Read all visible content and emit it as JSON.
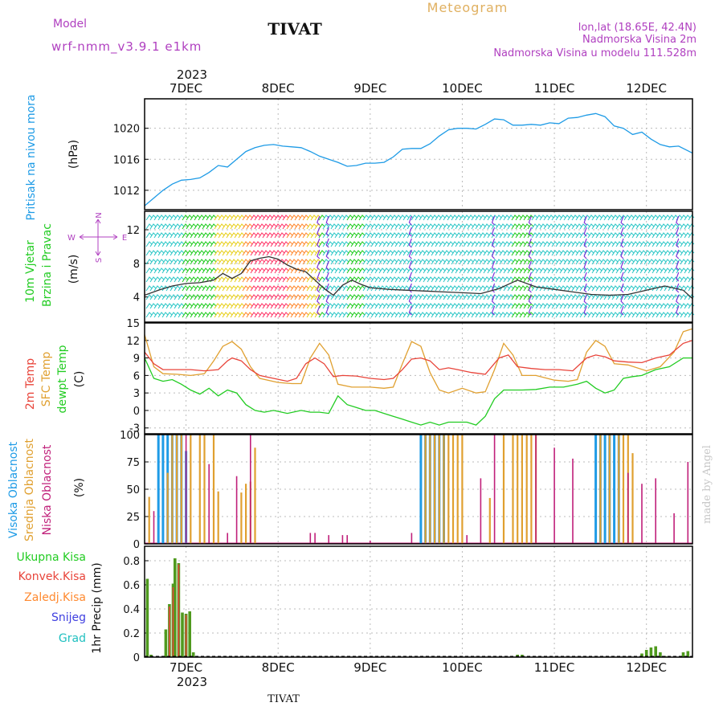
{
  "header": {
    "model_label": "Model",
    "model_name": "wrf-nmm_v3.9.1  e1km",
    "station": "TIVAT",
    "product": "Meteogram",
    "lonlat": "lon,lat (18.65E, 42.4N)",
    "elevation": "Nadmorska Visina 2m",
    "model_elevation": "Nadmorska Visina u modelu 111.528m",
    "footer_station": "TIVAT",
    "credit": "made by Angel"
  },
  "colors": {
    "pressure": "#1e9be6",
    "temp2m": "#e8443a",
    "sfc_temp": "#e0a030",
    "dewpoint": "#22cc22",
    "high_cloud": "#1e9be6",
    "mid_cloud": "#e0a030",
    "low_cloud": "#c0207a",
    "precip_total": "#4f9a1e",
    "convective": "#e8443a",
    "freezing": "#ff8a30",
    "snow": "#4040e0",
    "hail": "#20c0c0",
    "model_label": "#b040c0",
    "product_title": "#e0b060"
  },
  "axes": {
    "year": "2023",
    "day_labels": [
      "7DEC",
      "8DEC",
      "9DEC",
      "10DEC",
      "11DEC",
      "12DEC"
    ],
    "wind_compass": {
      "n": "N",
      "s": "S",
      "w": "W",
      "e": "E"
    }
  },
  "chart_data": [
    {
      "type": "line",
      "panel": "pressure",
      "ylabel_line1": "Pritisak na nivou mora",
      "ylabel_line2": "(hPa)",
      "ylim": [
        1009.5,
        1023.8
      ],
      "yticks": [
        "1012",
        "1016",
        "1020"
      ],
      "grid": true,
      "x_start_days": 6.55,
      "x_end_days": 12.5,
      "series": [
        {
          "name": "Pritisak na nivou mora",
          "x": [
            6.55,
            6.65,
            6.75,
            6.85,
            6.95,
            7.05,
            7.15,
            7.25,
            7.35,
            7.45,
            7.55,
            7.65,
            7.75,
            7.85,
            7.95,
            8.05,
            8.15,
            8.25,
            8.35,
            8.45,
            8.55,
            8.65,
            8.75,
            8.85,
            8.95,
            9.05,
            9.15,
            9.25,
            9.35,
            9.45,
            9.55,
            9.65,
            9.75,
            9.85,
            9.95,
            10.05,
            10.15,
            10.25,
            10.35,
            10.45,
            10.55,
            10.65,
            10.75,
            10.85,
            10.95,
            11.05,
            11.15,
            11.25,
            11.35,
            11.45,
            11.55,
            11.65,
            11.75,
            11.85,
            11.95,
            12.05,
            12.15,
            12.25,
            12.35,
            12.5
          ],
          "values": [
            1010.0,
            1011.0,
            1012.0,
            1012.8,
            1013.3,
            1013.4,
            1013.6,
            1014.3,
            1015.2,
            1015.0,
            1016.0,
            1017.0,
            1017.5,
            1017.8,
            1017.9,
            1017.7,
            1017.6,
            1017.5,
            1017.0,
            1016.4,
            1016.0,
            1015.6,
            1015.1,
            1015.2,
            1015.5,
            1015.5,
            1015.6,
            1016.3,
            1017.3,
            1017.4,
            1017.4,
            1018.0,
            1019.0,
            1019.8,
            1020.0,
            1020.0,
            1019.9,
            1020.5,
            1021.2,
            1021.1,
            1020.4,
            1020.4,
            1020.5,
            1020.4,
            1020.7,
            1020.6,
            1021.3,
            1021.4,
            1021.7,
            1021.9,
            1021.5,
            1020.3,
            1020.0,
            1019.2,
            1019.5,
            1018.6,
            1017.9,
            1017.6,
            1017.7,
            1016.8
          ]
        }
      ]
    },
    {
      "type": "line",
      "panel": "wind",
      "ylabel_line1": "10m Vjetar",
      "ylabel_line2": "Brzina i Pravac",
      "ylabel_unit": "(m/s)",
      "ylim": [
        1.0,
        14.2
      ],
      "yticks": [
        "4",
        "8",
        "12"
      ],
      "grid": true,
      "series": [
        {
          "name": "10m Vjetar",
          "x": [
            6.55,
            6.7,
            6.85,
            7.0,
            7.15,
            7.3,
            7.4,
            7.5,
            7.6,
            7.7,
            7.8,
            7.9,
            8.0,
            8.1,
            8.2,
            8.3,
            8.4,
            8.5,
            8.6,
            8.7,
            8.8,
            8.9,
            9.0,
            9.2,
            9.4,
            9.6,
            9.8,
            10.0,
            10.2,
            10.4,
            10.6,
            10.8,
            11.0,
            11.2,
            11.4,
            11.6,
            11.8,
            12.0,
            12.2,
            12.4,
            12.5
          ],
          "values": [
            4.2,
            4.8,
            5.3,
            5.6,
            5.7,
            6.0,
            6.8,
            6.2,
            6.8,
            8.3,
            8.6,
            8.8,
            8.5,
            7.8,
            7.3,
            7.0,
            6.0,
            5.0,
            4.2,
            5.4,
            6.0,
            5.5,
            5.1,
            4.9,
            4.8,
            4.7,
            4.6,
            4.5,
            4.4,
            5.0,
            6.0,
            5.2,
            4.9,
            4.6,
            4.3,
            4.2,
            4.3,
            4.8,
            5.3,
            4.8,
            3.8
          ]
        }
      ]
    },
    {
      "type": "line",
      "panel": "temperature",
      "ylabel_line1": "2m Temp",
      "ylabel_line2": "SFC Temp",
      "ylabel_line3": "dewpt Temp",
      "ylabel_unit": "(C)",
      "ylim": [
        -4,
        15
      ],
      "yticks": [
        "-3",
        "0",
        "3",
        "6",
        "9",
        "12",
        "15"
      ],
      "grid": true,
      "series": [
        {
          "name": "2m Temp",
          "x": [
            6.55,
            6.65,
            6.75,
            6.85,
            6.95,
            7.05,
            7.2,
            7.35,
            7.45,
            7.5,
            7.6,
            7.7,
            7.8,
            7.95,
            8.1,
            8.2,
            8.3,
            8.4,
            8.5,
            8.6,
            8.7,
            8.85,
            9.0,
            9.15,
            9.25,
            9.35,
            9.45,
            9.55,
            9.65,
            9.75,
            9.85,
            9.95,
            10.1,
            10.25,
            10.4,
            10.5,
            10.6,
            10.75,
            10.9,
            11.05,
            11.2,
            11.35,
            11.45,
            11.55,
            11.65,
            11.8,
            11.95,
            12.1,
            12.25,
            12.4,
            12.5
          ],
          "values": [
            10.0,
            8.0,
            7.0,
            7.0,
            7.0,
            7.0,
            6.8,
            7.0,
            8.5,
            9.0,
            8.5,
            7.0,
            6.0,
            5.5,
            5.0,
            5.5,
            8.0,
            9.0,
            8.0,
            5.8,
            6.0,
            5.9,
            5.5,
            5.3,
            5.5,
            7.0,
            8.8,
            9.0,
            8.5,
            7.0,
            7.3,
            7.0,
            6.5,
            6.2,
            9.0,
            9.5,
            7.5,
            7.2,
            7.0,
            7.0,
            6.8,
            9.0,
            9.5,
            9.2,
            8.5,
            8.3,
            8.2,
            9.0,
            9.5,
            11.5,
            12.0
          ]
        },
        {
          "name": "SFC Temp",
          "x": [
            6.55,
            6.65,
            6.75,
            6.9,
            7.05,
            7.2,
            7.3,
            7.4,
            7.5,
            7.6,
            7.7,
            7.8,
            8.0,
            8.15,
            8.25,
            8.35,
            8.45,
            8.55,
            8.65,
            8.8,
            9.0,
            9.15,
            9.25,
            9.35,
            9.45,
            9.55,
            9.65,
            9.75,
            9.85,
            10.0,
            10.15,
            10.25,
            10.35,
            10.45,
            10.55,
            10.65,
            10.8,
            11.0,
            11.15,
            11.25,
            11.35,
            11.45,
            11.55,
            11.65,
            11.8,
            12.0,
            12.15,
            12.3,
            12.4,
            12.5
          ],
          "values": [
            13.0,
            7.5,
            6.3,
            6.2,
            6.0,
            6.3,
            8.5,
            11.0,
            11.8,
            10.5,
            7.5,
            5.5,
            4.8,
            4.6,
            4.6,
            9.0,
            11.5,
            9.5,
            4.5,
            4.0,
            4.0,
            3.8,
            4.0,
            8.0,
            11.8,
            11.0,
            6.5,
            3.5,
            3.0,
            3.8,
            3.0,
            3.2,
            7.0,
            11.5,
            9.5,
            6.0,
            6.0,
            5.2,
            5.0,
            5.3,
            10.0,
            12.0,
            11.0,
            8.0,
            7.8,
            6.8,
            7.5,
            10.0,
            13.5,
            14.0
          ]
        },
        {
          "name": "dewpt Temp",
          "x": [
            6.55,
            6.65,
            6.75,
            6.85,
            6.95,
            7.05,
            7.15,
            7.25,
            7.35,
            7.45,
            7.55,
            7.65,
            7.75,
            7.85,
            7.95,
            8.1,
            8.25,
            8.35,
            8.45,
            8.55,
            8.65,
            8.75,
            8.85,
            8.95,
            9.05,
            9.15,
            9.25,
            9.35,
            9.45,
            9.55,
            9.65,
            9.75,
            9.85,
            9.95,
            10.05,
            10.15,
            10.25,
            10.35,
            10.45,
            10.55,
            10.65,
            10.8,
            10.95,
            11.1,
            11.25,
            11.35,
            11.45,
            11.55,
            11.65,
            11.75,
            11.85,
            11.95,
            12.1,
            12.25,
            12.4,
            12.5
          ],
          "values": [
            9.0,
            5.5,
            5.0,
            5.3,
            4.5,
            3.5,
            2.8,
            3.8,
            2.5,
            3.5,
            3.0,
            1.0,
            0.0,
            -0.3,
            0.0,
            -0.5,
            0.0,
            -0.3,
            -0.3,
            -0.5,
            2.5,
            1.0,
            0.5,
            0.0,
            0.0,
            -0.5,
            -1.0,
            -1.5,
            -2.0,
            -2.5,
            -2.0,
            -2.5,
            -2.0,
            -2.0,
            -2.0,
            -2.5,
            -1.0,
            2.0,
            3.5,
            3.5,
            3.5,
            3.6,
            4.0,
            4.0,
            4.5,
            5.0,
            3.8,
            3.0,
            3.5,
            5.5,
            5.8,
            6.0,
            7.0,
            7.5,
            9.0,
            9.0
          ]
        }
      ]
    },
    {
      "type": "bar",
      "panel": "cloud",
      "ylabel_line1": "Visoka Oblacnost",
      "ylabel_line2": "Srednja Oblacnost",
      "ylabel_line3": "Niska Oblacnost",
      "ylabel_unit": "(%)",
      "ylim": [
        0,
        100
      ],
      "yticks": [
        "0",
        "25",
        "50",
        "75",
        "100"
      ],
      "grid": true,
      "series": [
        {
          "name": "Visoka Oblacnost",
          "x": [
            6.7,
            6.75,
            6.8,
            6.85,
            6.9,
            6.95,
            7.0,
            9.55,
            9.6,
            9.65,
            9.7,
            9.75,
            9.8,
            11.45,
            11.5,
            11.55,
            11.6,
            11.65,
            11.7
          ],
          "values": [
            100,
            100,
            100,
            100,
            100,
            100,
            85,
            100,
            100,
            100,
            100,
            100,
            100,
            100,
            100,
            100,
            100,
            100,
            100
          ]
        },
        {
          "name": "Srednja Oblacnost",
          "x": [
            6.6,
            6.8,
            6.85,
            6.9,
            6.95,
            7.05,
            7.15,
            7.2,
            7.3,
            7.35,
            7.6,
            7.65,
            7.7,
            7.75,
            9.6,
            9.65,
            9.7,
            9.75,
            9.8,
            9.85,
            9.9,
            9.95,
            10.0,
            10.3,
            10.45,
            10.55,
            10.6,
            10.65,
            10.7,
            10.75,
            10.8,
            11.5,
            11.6,
            11.7,
            11.75,
            11.8,
            11.85
          ],
          "values": [
            43,
            65,
            100,
            100,
            100,
            100,
            100,
            100,
            100,
            48,
            47,
            55,
            57,
            88,
            100,
            100,
            100,
            100,
            100,
            100,
            100,
            100,
            100,
            42,
            100,
            100,
            100,
            100,
            100,
            100,
            100,
            100,
            100,
            100,
            100,
            100,
            83
          ]
        },
        {
          "name": "Niska Oblacnost",
          "x": [
            6.65,
            7.0,
            7.25,
            7.45,
            7.55,
            7.7,
            8.35,
            8.4,
            8.55,
            8.7,
            8.75,
            9.0,
            9.45,
            10.05,
            10.2,
            10.35,
            10.8,
            11.0,
            11.2,
            11.8,
            11.95,
            12.1,
            12.3,
            12.45
          ],
          "values": [
            30,
            100,
            73,
            10,
            62,
            100,
            10,
            10,
            8,
            8,
            8,
            3,
            10,
            8,
            60,
            100,
            100,
            88,
            78,
            65,
            55,
            60,
            28,
            75
          ]
        }
      ]
    },
    {
      "type": "bar",
      "panel": "precip",
      "ylabel": "1hr Precip (mm)",
      "ylim": [
        0,
        0.92
      ],
      "yticks": [
        "0",
        "0.2",
        "0.4",
        "0.6",
        "0.8"
      ],
      "grid": true,
      "legend": [
        "Ukupna Kisa",
        "Konvek.Kisa",
        "Zaledj.Kisa",
        "Snijeg",
        "Grad"
      ],
      "series": [
        {
          "name": "Ukupna Kisa",
          "x": [
            6.58,
            6.62,
            6.78,
            6.82,
            6.86,
            6.88,
            6.92,
            6.96,
            7.0,
            7.04,
            7.08,
            10.6,
            10.65,
            11.95,
            12.0,
            12.05,
            12.1,
            12.15,
            12.2,
            12.4,
            12.45
          ],
          "values": [
            0.65,
            0.02,
            0.23,
            0.44,
            0.61,
            0.82,
            0.78,
            0.37,
            0.36,
            0.38,
            0.04,
            0.02,
            0.02,
            0.03,
            0.06,
            0.08,
            0.09,
            0.04,
            0.01,
            0.04,
            0.05
          ]
        },
        {
          "name": "Konvek.Kisa",
          "x": [
            6.82,
            6.86,
            6.92,
            7.0
          ],
          "values": [
            0.42,
            0.58,
            0.77,
            0.35
          ]
        }
      ]
    }
  ]
}
